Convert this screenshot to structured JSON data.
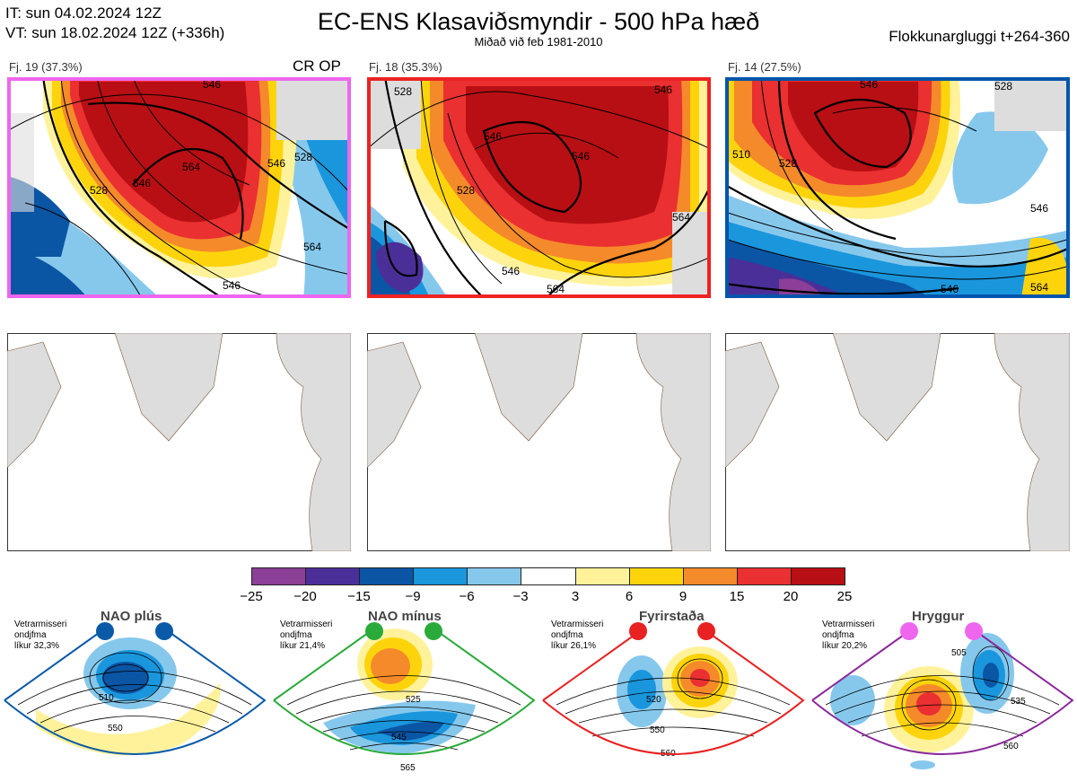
{
  "header": {
    "it_line": "IT: sun 04.02.2024 12Z",
    "vt_line": "VT: sun 18.02.2024 12Z  (+336h)",
    "title": "EC-ENS Klasaviðsmyndir - 500 hPa hæð",
    "subtitle": "Miðað við feb 1981-2010",
    "window": "Flokkunargluggi t+264-360"
  },
  "clusters": [
    {
      "label": "Fj. 19 (37.3%)",
      "border_color": "#ee66ee",
      "tag": "CR OP",
      "contours": [
        "528",
        "546",
        "546",
        "564",
        "546",
        "528",
        "546",
        "564"
      ]
    },
    {
      "label": "Fj. 18 (35.3%)",
      "border_color": "#ee2222",
      "contours": [
        "528",
        "546",
        "546",
        "528",
        "546",
        "564",
        "546",
        "564"
      ]
    },
    {
      "label": "Fj. 14 (27.5%)",
      "border_color": "#0055aa",
      "contours": [
        "546",
        "528",
        "510",
        "528",
        "546",
        "546",
        "564"
      ]
    }
  ],
  "colorbar": {
    "colors": [
      "#8b3f96",
      "#4b2f99",
      "#0b55a5",
      "#1a96dd",
      "#86c8ec",
      "#ffffff",
      "#fff29a",
      "#fdd40c",
      "#f58a2a",
      "#ea3030",
      "#b80f14"
    ],
    "ticks": [
      "−25",
      "−20",
      "−15",
      "−9",
      "−6",
      "−3",
      "3",
      "6",
      "9",
      "15",
      "20",
      "25"
    ]
  },
  "regimes": [
    {
      "name": "NAO plús",
      "note_line1": "Vetrarmisseri",
      "note_line2": "ondjfma",
      "note_line3": "líkur 32,3%",
      "frame_color": "#0a5aa8",
      "dot_color": "#0a5aa8",
      "contours": [
        "510",
        "550"
      ]
    },
    {
      "name": "NAO mínus",
      "note_line1": "Vetrarmisseri",
      "note_line2": "ondjfma",
      "note_line3": "líkur 21,4%",
      "frame_color": "#2aaa3a",
      "dot_color": "#2aaa3a",
      "contours": [
        "525",
        "545",
        "565"
      ]
    },
    {
      "name": "Fyrirstaða",
      "note_line1": "Vetrarmisseri",
      "note_line2": "ondjfma",
      "note_line3": "líkur 26,1%",
      "frame_color": "#e82222",
      "dot_color": "#e82222",
      "contours": [
        "520",
        "550",
        "560"
      ]
    },
    {
      "name": "Hryggur",
      "note_line1": "Vetrarmisseri",
      "note_line2": "ondjfma",
      "note_line3": "líkur 20,2%",
      "frame_color": "#8a2a9a",
      "dot_color": "#ee66ee",
      "contours": [
        "505",
        "535",
        "560"
      ]
    }
  ]
}
